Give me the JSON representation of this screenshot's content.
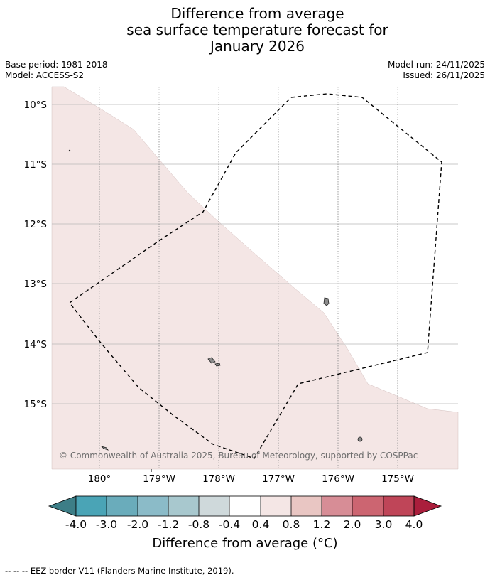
{
  "title": {
    "line1": "Difference from average",
    "line2": "sea surface temperature forecast for",
    "line3": "January 2026"
  },
  "meta": {
    "base_period": "Base period: 1981-2018",
    "model": "Model: ACCESS-S2",
    "model_run": "Model run: 24/11/2025",
    "issued": "Issued: 26/11/2025"
  },
  "map": {
    "lat_labels": [
      "10°S",
      "11°S",
      "12°S",
      "13°S",
      "14°S",
      "15°S"
    ],
    "lon_labels": [
      "180°",
      "179°W",
      "178°W",
      "177°W",
      "176°W",
      "175°W"
    ],
    "copyright": "© Commonwealth of Australia 2025, Bureau of Meteorology, supported by COSPPac",
    "anomaly_fill": "#f4e6e5",
    "eez_style": "dashed"
  },
  "colorbar": {
    "title": "Difference from average (°C)",
    "ticks": [
      "-4.0",
      "-3.0",
      "-2.0",
      "-1.2",
      "-0.8",
      "-0.4",
      "0.4",
      "0.8",
      "1.2",
      "2.0",
      "3.0",
      "4.0"
    ],
    "colors": [
      "#3d7e87",
      "#4aa4b6",
      "#6aacbb",
      "#8bbbc8",
      "#a8c8ce",
      "#cfd9db",
      "#ffffff",
      "#f4e6e5",
      "#e9c6c3",
      "#d78d96",
      "#cc6571",
      "#bf4558",
      "#aa1e3c"
    ]
  },
  "footnote": "--  --  -- EEZ border V11 (Flanders Marine Institute, 2019)."
}
